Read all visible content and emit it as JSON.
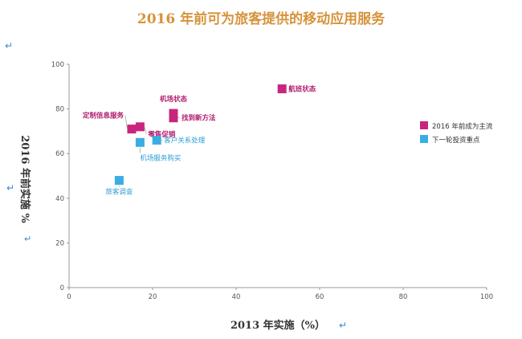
{
  "chart_data": {
    "type": "scatter",
    "title": "2016 年前可为旅客提供的移动应用服务",
    "xlabel": "2013 年实施（%）",
    "ylabel": "2016 年前实施 %",
    "xlim": [
      0,
      100
    ],
    "ylim": [
      0,
      100
    ],
    "xticks": [
      0,
      20,
      40,
      60,
      80,
      100
    ],
    "yticks": [
      0,
      20,
      40,
      60,
      80,
      100
    ],
    "grid": false,
    "legend_position": "right",
    "series": [
      {
        "name": "2016 年前成为主流",
        "color": "#c8267e",
        "points": [
          {
            "label": "航班状态",
            "x": 51,
            "y": 89
          },
          {
            "label": "机场状态",
            "x": 25,
            "y": 78
          },
          {
            "label": "找到新方法",
            "x": 25,
            "y": 76
          },
          {
            "label": "零售促销",
            "x": 17,
            "y": 72
          },
          {
            "label": "定制信息服务",
            "x": 15,
            "y": 71
          }
        ]
      },
      {
        "name": "下一轮投资重点",
        "color": "#3aaee2",
        "points": [
          {
            "label": "客户关系处理",
            "x": 21,
            "y": 66
          },
          {
            "label": "机场服务购买",
            "x": 17,
            "y": 65
          },
          {
            "label": "旅客调查",
            "x": 12,
            "y": 48
          }
        ]
      }
    ]
  }
}
